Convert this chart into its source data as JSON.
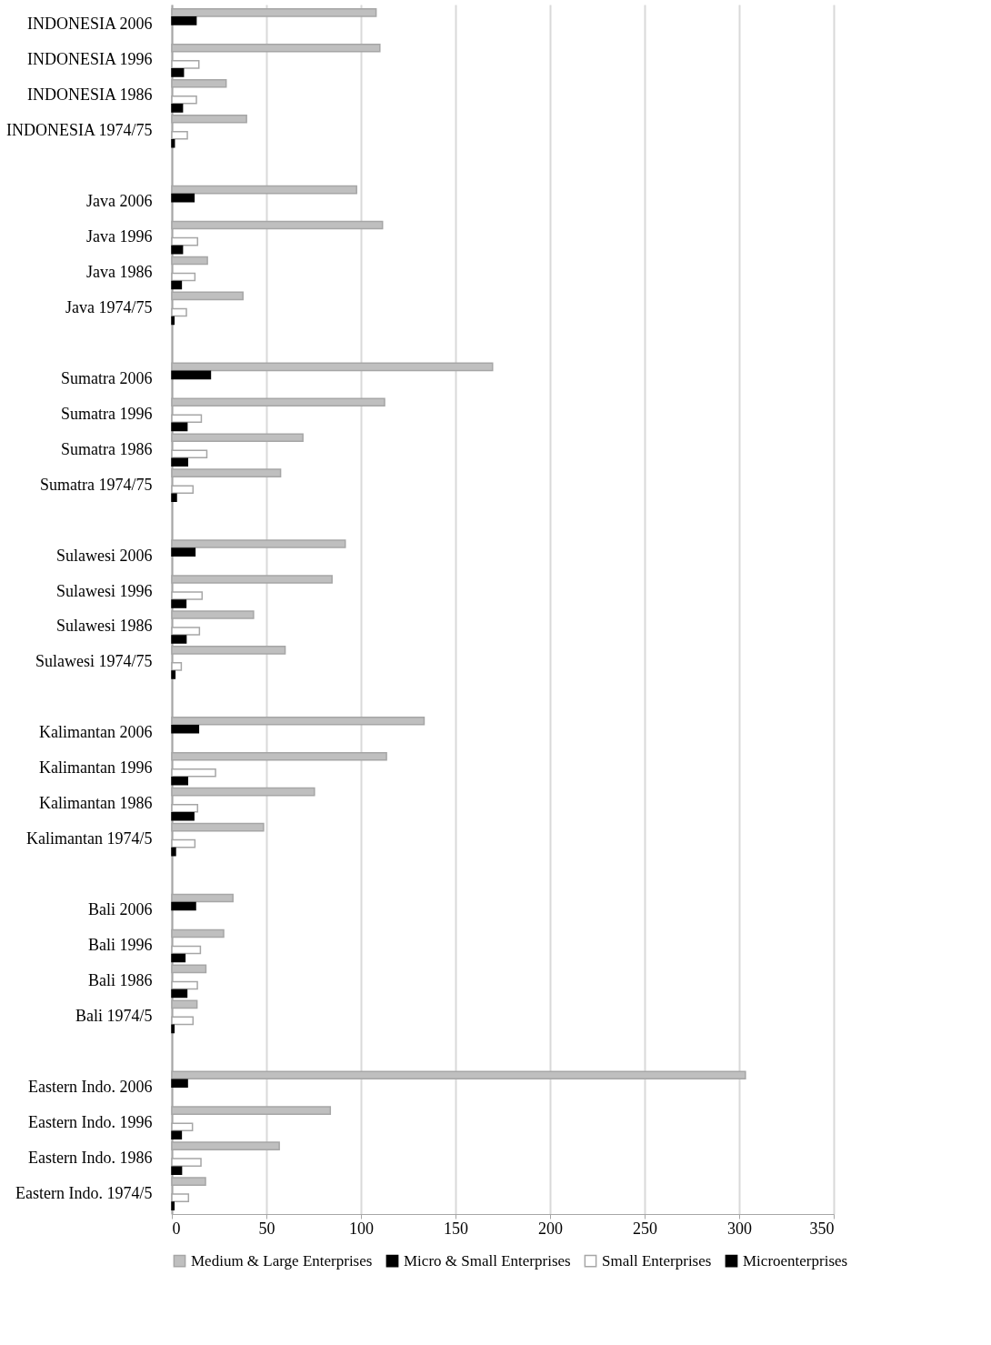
{
  "chart_data": {
    "type": "bar",
    "orientation": "horizontal",
    "categories": [
      "INDONESIA 2006",
      "INDONESIA 1996",
      "INDONESIA 1986",
      "INDONESIA 1974/75",
      null,
      "Java 2006",
      "Java 1996",
      "Java 1986",
      "Java 1974/75",
      null,
      "Sumatra 2006",
      "Sumatra 1996",
      "Sumatra 1986",
      "Sumatra 1974/75",
      null,
      "Sulawesi 2006",
      "Sulawesi 1996",
      "Sulawesi 1986",
      "Sulawesi 1974/75",
      null,
      "Kalimantan 2006",
      "Kalimantan 1996",
      "Kalimantan 1986",
      "Kalimantan 1974/5",
      null,
      "Bali 2006",
      "Bali 1996",
      "Bali 1986",
      "Bali 1974/5",
      null,
      "Eastern Indo. 2006",
      "Eastern Indo. 1996",
      "Eastern Indo. 1986",
      "Eastern Indo. 1974/5"
    ],
    "series": [
      {
        "name": "Medium & Large Enterprises",
        "color": "#bfbfbf",
        "values": [
          108,
          110,
          28.7,
          39.5,
          null,
          97.7,
          111.4,
          18.8,
          37.6,
          null,
          169.6,
          112.5,
          69.3,
          57.5,
          null,
          91.7,
          84.7,
          43.2,
          59.9,
          null,
          133.4,
          113.5,
          75.4,
          48.5,
          null,
          32.3,
          27.4,
          18,
          13.3,
          null,
          303.3,
          83.8,
          56.8,
          17.8
        ]
      },
      {
        "name": "Micro & Small Enterprises",
        "color": "#000000",
        "values": [
          12.8,
          null,
          null,
          null,
          null,
          11.7,
          null,
          null,
          null,
          null,
          20.4,
          null,
          null,
          null,
          null,
          12.2,
          null,
          null,
          null,
          null,
          14.1,
          null,
          null,
          null,
          null,
          12.5,
          null,
          null,
          null,
          null,
          8.2,
          null,
          null,
          null
        ]
      },
      {
        "name": "Small Enterprises",
        "color": "#ffffff",
        "values": [
          null,
          14.3,
          13,
          8.2,
          null,
          null,
          13.6,
          12.2,
          7.7,
          null,
          null,
          15.6,
          18.5,
          11.2,
          null,
          null,
          16,
          14.6,
          5,
          null,
          null,
          23.1,
          13.6,
          12.2,
          null,
          null,
          15.1,
          13.5,
          11.2,
          null,
          null,
          10.9,
          15.4,
          8.8
        ]
      },
      {
        "name": "Microenterprises",
        "color": "#000000",
        "values": [
          null,
          6.1,
          5.6,
          1.3,
          null,
          null,
          5.6,
          5,
          1.1,
          null,
          null,
          8,
          8.3,
          2.4,
          null,
          null,
          7.4,
          7.5,
          1.6,
          null,
          null,
          8.3,
          11.6,
          1.9,
          null,
          null,
          6.9,
          7.9,
          1.1,
          null,
          null,
          5,
          5.1,
          1.1
        ]
      }
    ],
    "xlim": [
      0,
      350
    ],
    "xticks": [
      0,
      50,
      100,
      150,
      200,
      250,
      300,
      350
    ],
    "grid": "x",
    "legend": "bottom"
  }
}
